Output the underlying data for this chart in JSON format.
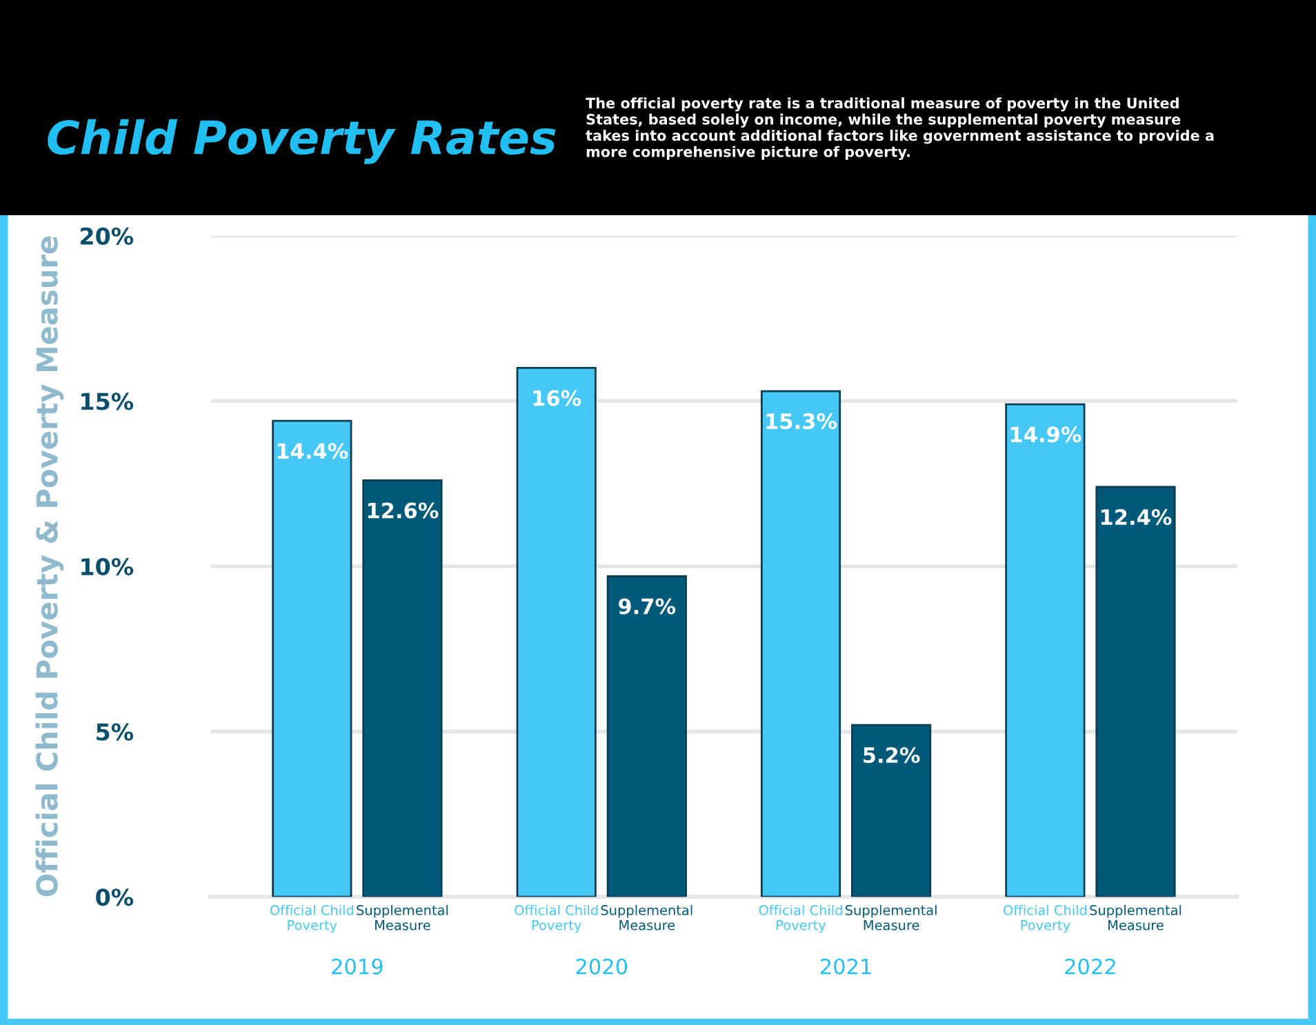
{
  "chart_data": {
    "type": "bar",
    "title": "Child Poverty Rates",
    "subtitle": "The official poverty rate is a traditional measure of poverty in the United States, based solely on income, while the supplemental poverty measure takes into account additional factors like government assistance to provide a more comprehensive picture of poverty.",
    "ylabel": "Official Child Poverty & Poverty Measure",
    "categories": [
      "2019",
      "2020",
      "2021",
      "2022"
    ],
    "series": [
      {
        "name": "Official Child Poverty",
        "color": "#45c8f5",
        "values": [
          14.4,
          16,
          15.3,
          14.9
        ],
        "value_labels": [
          "14.4%",
          "16%",
          "15.3%",
          "14.9%"
        ]
      },
      {
        "name": "Supplemental Measure",
        "color": "#025a7a",
        "values": [
          12.6,
          9.7,
          5.2,
          12.4
        ],
        "value_labels": [
          "12.6%",
          "9.7%",
          "5.2%",
          "12.4%"
        ]
      }
    ],
    "ylim": [
      0,
      20
    ],
    "yticks": [
      {
        "value": 0,
        "label": "0%"
      },
      {
        "value": 5,
        "label": "5%"
      },
      {
        "value": 10,
        "label": "10%"
      },
      {
        "value": 15,
        "label": "15%"
      },
      {
        "value": 20,
        "label": "20%"
      }
    ],
    "grid": "y",
    "legend": false
  }
}
